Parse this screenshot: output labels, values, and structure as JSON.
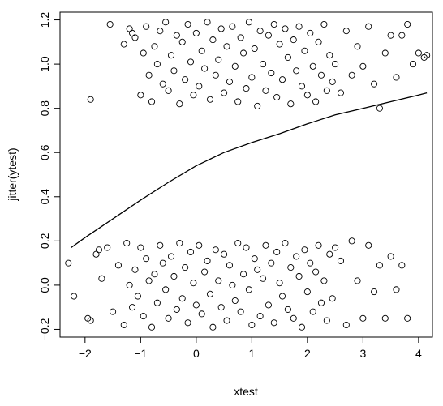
{
  "chart_data": {
    "type": "scatter",
    "title": "",
    "xlabel": "xtest",
    "ylabel": "jitter(ytest)",
    "xlim": [
      -2.45,
      4.25
    ],
    "ylim": [
      -0.235,
      1.235
    ],
    "xticks": [
      -2,
      -1,
      0,
      1,
      2,
      3,
      4
    ],
    "xtick_labels": [
      "−2",
      "−1",
      "0",
      "1",
      "2",
      "3",
      "4"
    ],
    "yticks": [
      -0.2,
      0.0,
      0.2,
      0.4,
      0.6,
      0.8,
      1.0,
      1.2
    ],
    "ytick_labels": [
      "−0.2",
      "0.0",
      "0.2",
      "0.4",
      "0.6",
      "0.8",
      "1.0",
      "1.2"
    ],
    "grid": false,
    "legend": "none",
    "series": [
      {
        "type": "scatter",
        "marker": "open-circle",
        "color": "#000000",
        "note_y0": "ytest = 0 points jittered within [-0.2, 0.2]",
        "x": [
          -2.3,
          -2.2,
          -1.95,
          -1.9,
          -1.8,
          -1.75,
          -1.7,
          -1.6,
          -1.5,
          -1.4,
          -1.3,
          -1.25,
          -1.2,
          -1.15,
          -1.1,
          -1.05,
          -1.0,
          -0.95,
          -0.9,
          -0.85,
          -0.8,
          -0.75,
          -0.7,
          -0.65,
          -0.6,
          -0.55,
          -0.5,
          -0.45,
          -0.4,
          -0.35,
          -0.3,
          -0.25,
          -0.2,
          -0.15,
          -0.1,
          -0.05,
          0.0,
          0.05,
          0.1,
          0.15,
          0.2,
          0.25,
          0.3,
          0.35,
          0.4,
          0.45,
          0.5,
          0.55,
          0.6,
          0.65,
          0.7,
          0.75,
          0.8,
          0.85,
          0.9,
          0.95,
          1.0,
          1.05,
          1.1,
          1.15,
          1.2,
          1.25,
          1.3,
          1.35,
          1.4,
          1.45,
          1.5,
          1.55,
          1.6,
          1.65,
          1.7,
          1.75,
          1.8,
          1.85,
          1.9,
          1.95,
          2.0,
          2.05,
          2.1,
          2.15,
          2.2,
          2.25,
          2.3,
          2.35,
          2.4,
          2.45,
          2.5,
          2.6,
          2.7,
          2.8,
          2.9,
          3.0,
          3.1,
          3.2,
          3.3,
          3.4,
          3.5,
          3.6,
          3.7,
          3.8
        ],
        "y": [
          0.1,
          -0.05,
          -0.15,
          -0.16,
          0.14,
          0.16,
          0.03,
          0.17,
          -0.12,
          0.09,
          -0.18,
          0.19,
          0.0,
          -0.1,
          0.07,
          -0.05,
          0.17,
          -0.14,
          0.12,
          0.02,
          -0.19,
          0.05,
          -0.08,
          0.18,
          0.1,
          -0.02,
          -0.15,
          0.13,
          0.04,
          -0.11,
          0.19,
          -0.06,
          0.08,
          -0.17,
          0.15,
          0.01,
          -0.09,
          0.18,
          -0.13,
          0.06,
          0.11,
          -0.04,
          -0.19,
          0.16,
          0.02,
          -0.1,
          0.14,
          -0.16,
          0.09,
          0.0,
          -0.07,
          0.19,
          -0.12,
          0.05,
          0.17,
          -0.02,
          -0.18,
          0.12,
          0.07,
          -0.14,
          0.03,
          0.18,
          -0.09,
          0.1,
          -0.17,
          0.15,
          0.01,
          -0.05,
          0.19,
          -0.11,
          0.08,
          -0.15,
          0.13,
          0.04,
          -0.19,
          0.16,
          -0.03,
          0.1,
          -0.12,
          0.06,
          0.18,
          -0.08,
          0.02,
          -0.16,
          0.14,
          -0.06,
          0.17,
          0.11,
          -0.18,
          0.2,
          0.02,
          -0.15,
          0.18,
          -0.03,
          0.09,
          -0.15,
          0.13,
          -0.02,
          0.09,
          -0.15
        ]
      },
      {
        "type": "scatter",
        "marker": "open-circle",
        "color": "#000000",
        "note_y1": "ytest = 1 points jittered within [0.8, 1.2]",
        "x": [
          -1.9,
          -1.55,
          -1.3,
          -1.2,
          -1.15,
          -1.1,
          -1.0,
          -0.95,
          -0.9,
          -0.85,
          -0.8,
          -0.75,
          -0.7,
          -0.65,
          -0.6,
          -0.55,
          -0.5,
          -0.45,
          -0.4,
          -0.35,
          -0.3,
          -0.25,
          -0.2,
          -0.15,
          -0.1,
          -0.05,
          0.0,
          0.05,
          0.1,
          0.15,
          0.2,
          0.25,
          0.3,
          0.35,
          0.4,
          0.45,
          0.5,
          0.55,
          0.6,
          0.65,
          0.7,
          0.75,
          0.8,
          0.85,
          0.9,
          0.95,
          1.0,
          1.05,
          1.1,
          1.15,
          1.2,
          1.25,
          1.3,
          1.35,
          1.4,
          1.45,
          1.5,
          1.55,
          1.6,
          1.65,
          1.7,
          1.75,
          1.8,
          1.85,
          1.9,
          1.95,
          2.0,
          2.05,
          2.1,
          2.15,
          2.2,
          2.25,
          2.3,
          2.35,
          2.4,
          2.45,
          2.5,
          2.6,
          2.7,
          2.8,
          2.9,
          3.0,
          3.1,
          3.2,
          3.3,
          3.4,
          3.5,
          3.6,
          3.7,
          3.8,
          3.9,
          4.0,
          4.1,
          4.15
        ],
        "y": [
          0.84,
          1.18,
          1.09,
          1.16,
          1.14,
          1.12,
          0.86,
          1.05,
          1.17,
          0.95,
          0.83,
          1.08,
          1.0,
          1.15,
          0.91,
          1.19,
          0.88,
          1.04,
          0.97,
          1.13,
          0.82,
          1.1,
          0.93,
          1.18,
          1.01,
          0.86,
          1.14,
          0.9,
          1.06,
          0.98,
          1.19,
          0.84,
          1.11,
          0.95,
          1.02,
          1.16,
          0.87,
          1.08,
          0.92,
          1.17,
          0.99,
          0.83,
          1.12,
          1.05,
          0.89,
          1.19,
          0.94,
          1.07,
          0.81,
          1.15,
          1.0,
          0.88,
          1.13,
          0.96,
          1.18,
          0.85,
          1.09,
          0.93,
          1.16,
          1.03,
          0.82,
          1.11,
          0.97,
          1.17,
          0.9,
          1.06,
          0.86,
          1.14,
          0.99,
          0.83,
          1.1,
          0.95,
          1.18,
          0.88,
          1.04,
          0.92,
          1.0,
          0.87,
          1.15,
          0.95,
          1.08,
          0.99,
          1.17,
          0.91,
          0.8,
          1.05,
          1.13,
          0.94,
          1.13,
          1.18,
          1.0,
          1.05,
          1.03,
          1.04
        ]
      },
      {
        "type": "line",
        "color": "#000000",
        "x": [
          -2.25,
          -2.0,
          -1.5,
          -1.0,
          -0.5,
          0.0,
          0.5,
          1.0,
          1.5,
          2.0,
          2.5,
          3.0,
          3.5,
          4.0,
          4.15
        ],
        "y": [
          0.17,
          0.215,
          0.3,
          0.385,
          0.465,
          0.54,
          0.6,
          0.645,
          0.685,
          0.73,
          0.77,
          0.8,
          0.83,
          0.86,
          0.87
        ]
      }
    ]
  }
}
